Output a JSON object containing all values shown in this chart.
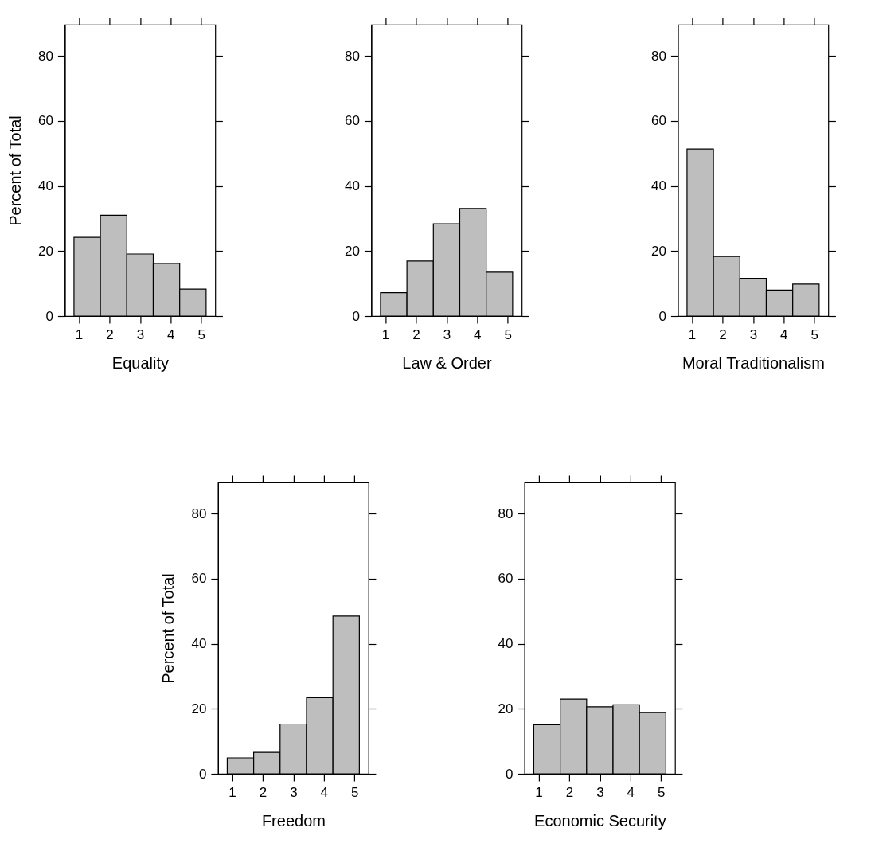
{
  "chart_data": [
    {
      "type": "histogram",
      "xlabel": "Equality",
      "ylabel": "Percent of Total",
      "bins": [
        0.84,
        1.704,
        2.568,
        3.432,
        4.296,
        5.16
      ],
      "values": [
        24.2,
        31.0,
        19.1,
        16.2,
        8.3
      ],
      "color": "#bebebe",
      "xlim": [
        0.54,
        5.46
      ],
      "ylim": [
        0,
        89.6
      ],
      "xticks": [
        1,
        2,
        3,
        4,
        5
      ],
      "yticks": [
        0,
        20,
        40,
        60,
        80
      ],
      "grid": false
    },
    {
      "type": "histogram",
      "xlabel": "Law & Order",
      "bins": [
        0.84,
        1.704,
        2.568,
        3.432,
        4.296,
        5.16
      ],
      "values": [
        7.2,
        16.9,
        28.4,
        33.1,
        13.5
      ],
      "color": "#bebebe",
      "xlim": [
        0.54,
        5.46
      ],
      "ylim": [
        0,
        89.6
      ],
      "xticks": [
        1,
        2,
        3,
        4,
        5
      ],
      "yticks": [
        0,
        20,
        40,
        60,
        80
      ],
      "grid": false
    },
    {
      "type": "histogram",
      "xlabel": "Moral Traditionalism",
      "bins": [
        0.84,
        1.704,
        2.568,
        3.432,
        4.296,
        5.16
      ],
      "values": [
        51.4,
        18.3,
        11.6,
        8.0,
        9.8
      ],
      "color": "#bebebe",
      "xlim": [
        0.54,
        5.46
      ],
      "ylim": [
        0,
        89.6
      ],
      "xticks": [
        1,
        2,
        3,
        4,
        5
      ],
      "yticks": [
        0,
        20,
        40,
        60,
        80
      ],
      "grid": false
    },
    {
      "type": "histogram",
      "xlabel": "Freedom",
      "ylabel": "Percent of Total",
      "bins": [
        0.84,
        1.704,
        2.568,
        3.432,
        4.296,
        5.16
      ],
      "values": [
        4.9,
        6.6,
        15.3,
        23.4,
        48.5
      ],
      "color": "#bebebe",
      "xlim": [
        0.54,
        5.46
      ],
      "ylim": [
        0,
        89.6
      ],
      "xticks": [
        1,
        2,
        3,
        4,
        5
      ],
      "yticks": [
        0,
        20,
        40,
        60,
        80
      ],
      "grid": false
    },
    {
      "type": "histogram",
      "xlabel": "Economic Security",
      "bins": [
        0.84,
        1.704,
        2.568,
        3.432,
        4.296,
        5.16
      ],
      "values": [
        15.1,
        23.0,
        20.6,
        21.2,
        18.8
      ],
      "color": "#bebebe",
      "xlim": [
        0.54,
        5.46
      ],
      "ylim": [
        0,
        89.6
      ],
      "xticks": [
        1,
        2,
        3,
        4,
        5
      ],
      "yticks": [
        0,
        20,
        40,
        60,
        80
      ],
      "grid": false
    }
  ]
}
